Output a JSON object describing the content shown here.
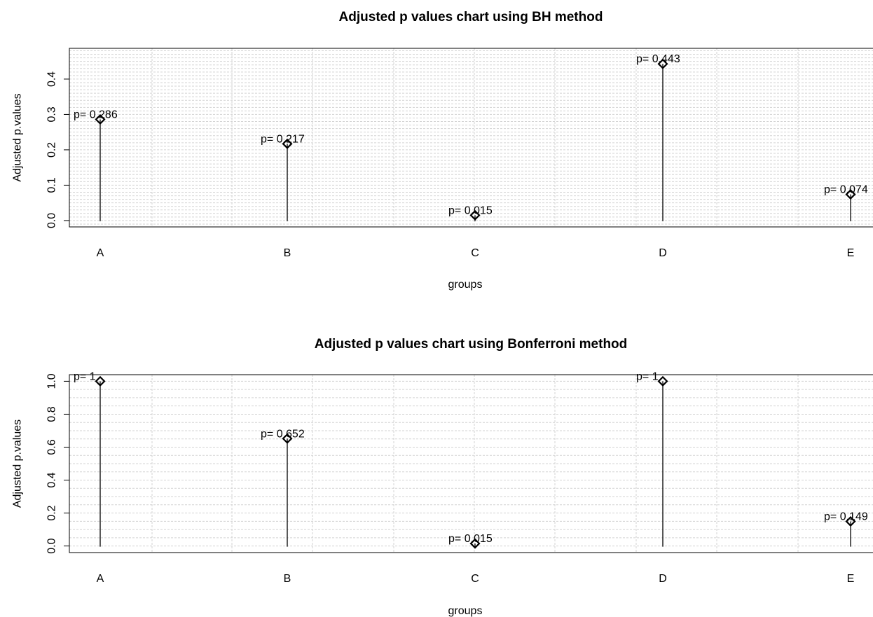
{
  "chart_data": [
    {
      "type": "lollipop",
      "title": "Adjusted p values chart using BH method",
      "xlabel": "groups",
      "ylabel": "Adjusted p.values",
      "categories": [
        "A",
        "B",
        "C",
        "D",
        "E"
      ],
      "values": [
        0.286,
        0.217,
        0.015,
        0.443,
        0.074
      ],
      "data_labels": [
        "p= 0.286",
        "p= 0.217",
        "p= 0.015",
        "p= 0.443",
        "p= 0.074"
      ],
      "yticks": [
        0.0,
        0.1,
        0.2,
        0.3,
        0.4
      ],
      "ytick_labels": [
        "0.0",
        "0.1",
        "0.2",
        "0.3",
        "0.4"
      ],
      "ylim": [
        -0.018,
        0.487
      ],
      "grid": true,
      "marker": "diamond"
    },
    {
      "type": "lollipop",
      "title": "Adjusted p values chart using Bonferroni method",
      "xlabel": "groups",
      "ylabel": "Adjusted p.values",
      "categories": [
        "A",
        "B",
        "C",
        "D",
        "E"
      ],
      "values": [
        1,
        0.652,
        0.015,
        1,
        0.149
      ],
      "data_labels": [
        "p= 1",
        "p= 0.652",
        "p= 0.015",
        "p= 1",
        "p= 0.149"
      ],
      "yticks": [
        0.0,
        0.2,
        0.4,
        0.6,
        0.8,
        1.0
      ],
      "ytick_labels": [
        "0.0",
        "0.2",
        "0.4",
        "0.6",
        "0.8",
        "1.0"
      ],
      "ylim": [
        -0.04,
        1.04
      ],
      "grid": true,
      "marker": "diamond"
    }
  ]
}
